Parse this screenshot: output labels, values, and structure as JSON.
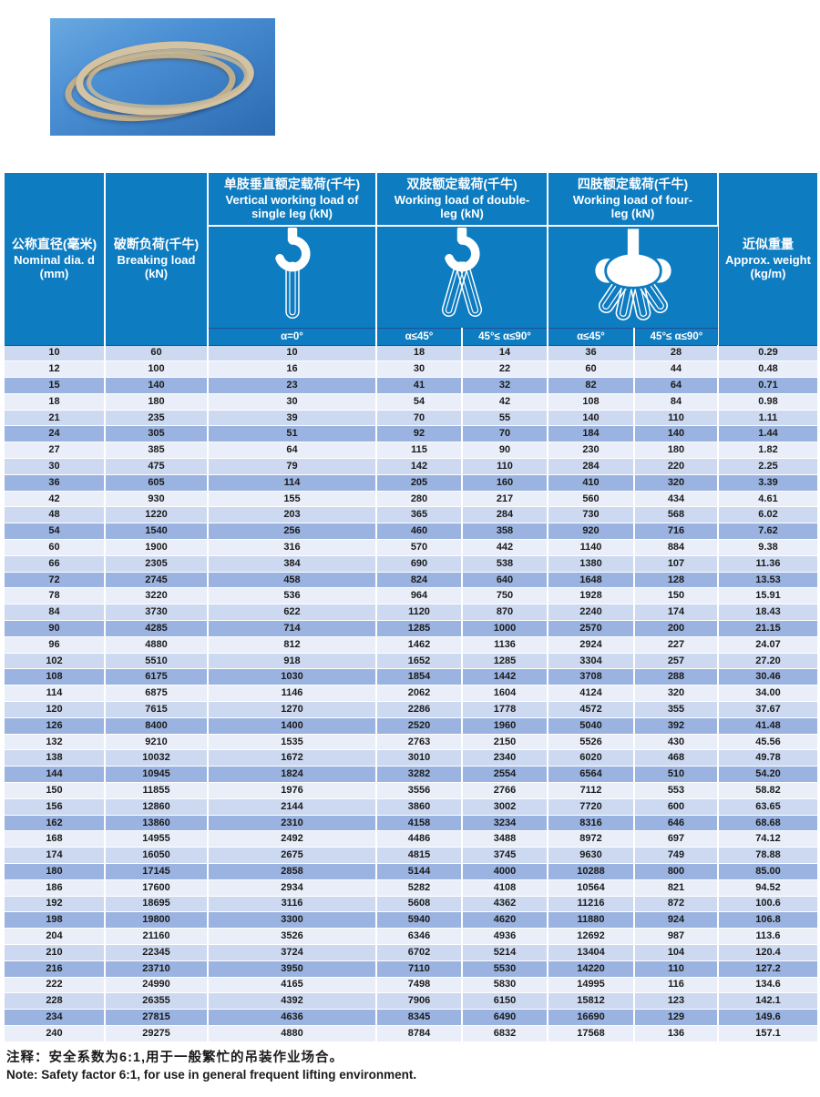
{
  "product_image": {
    "name": "wire-rope-coil-photo"
  },
  "table": {
    "headers": {
      "nominal": {
        "zh": "公称直径(毫米)",
        "en": "Nominal dia. d\n(mm)"
      },
      "breaking": {
        "zh": "破断负荷(千牛)",
        "en": "Breaking load\n(kN)"
      },
      "single": {
        "zh": "单肢垂直额定载荷(千牛)",
        "en": "Vertical working load of\nsingle leg (kN)"
      },
      "double": {
        "zh": "双肢额定载荷(千牛)",
        "en": "Working load of double-\nleg (kN)"
      },
      "four": {
        "zh": "四肢额定载荷(千牛)",
        "en": "Working load of four-\nleg (kN)"
      },
      "weight": {
        "zh": "近似重量",
        "en": "Approx. weight\n(kg/m)"
      }
    },
    "angle_labels": [
      "α=0°",
      "α≤45°",
      "45°≤ α≤90°",
      "α≤45°",
      "45°≤ α≤90°"
    ],
    "icons": [
      "single-leg-hook-icon",
      "double-leg-hook-icon",
      "four-leg-sling-icon"
    ],
    "rows": [
      [
        "10",
        "60",
        "10",
        "18",
        "14",
        "36",
        "28",
        "0.29"
      ],
      [
        "12",
        "100",
        "16",
        "30",
        "22",
        "60",
        "44",
        "0.48"
      ],
      [
        "15",
        "140",
        "23",
        "41",
        "32",
        "82",
        "64",
        "0.71"
      ],
      [
        "18",
        "180",
        "30",
        "54",
        "42",
        "108",
        "84",
        "0.98"
      ],
      [
        "21",
        "235",
        "39",
        "70",
        "55",
        "140",
        "110",
        "1.11"
      ],
      [
        "24",
        "305",
        "51",
        "92",
        "70",
        "184",
        "140",
        "1.44"
      ],
      [
        "27",
        "385",
        "64",
        "115",
        "90",
        "230",
        "180",
        "1.82"
      ],
      [
        "30",
        "475",
        "79",
        "142",
        "110",
        "284",
        "220",
        "2.25"
      ],
      [
        "36",
        "605",
        "114",
        "205",
        "160",
        "410",
        "320",
        "3.39"
      ],
      [
        "42",
        "930",
        "155",
        "280",
        "217",
        "560",
        "434",
        "4.61"
      ],
      [
        "48",
        "1220",
        "203",
        "365",
        "284",
        "730",
        "568",
        "6.02"
      ],
      [
        "54",
        "1540",
        "256",
        "460",
        "358",
        "920",
        "716",
        "7.62"
      ],
      [
        "60",
        "1900",
        "316",
        "570",
        "442",
        "1140",
        "884",
        "9.38"
      ],
      [
        "66",
        "2305",
        "384",
        "690",
        "538",
        "1380",
        "107",
        "11.36"
      ],
      [
        "72",
        "2745",
        "458",
        "824",
        "640",
        "1648",
        "128",
        "13.53"
      ],
      [
        "78",
        "3220",
        "536",
        "964",
        "750",
        "1928",
        "150",
        "15.91"
      ],
      [
        "84",
        "3730",
        "622",
        "1120",
        "870",
        "2240",
        "174",
        "18.43"
      ],
      [
        "90",
        "4285",
        "714",
        "1285",
        "1000",
        "2570",
        "200",
        "21.15"
      ],
      [
        "96",
        "4880",
        "812",
        "1462",
        "1136",
        "2924",
        "227",
        "24.07"
      ],
      [
        "102",
        "5510",
        "918",
        "1652",
        "1285",
        "3304",
        "257",
        "27.20"
      ],
      [
        "108",
        "6175",
        "1030",
        "1854",
        "1442",
        "3708",
        "288",
        "30.46"
      ],
      [
        "114",
        "6875",
        "1146",
        "2062",
        "1604",
        "4124",
        "320",
        "34.00"
      ],
      [
        "120",
        "7615",
        "1270",
        "2286",
        "1778",
        "4572",
        "355",
        "37.67"
      ],
      [
        "126",
        "8400",
        "1400",
        "2520",
        "1960",
        "5040",
        "392",
        "41.48"
      ],
      [
        "132",
        "9210",
        "1535",
        "2763",
        "2150",
        "5526",
        "430",
        "45.56"
      ],
      [
        "138",
        "10032",
        "1672",
        "3010",
        "2340",
        "6020",
        "468",
        "49.78"
      ],
      [
        "144",
        "10945",
        "1824",
        "3282",
        "2554",
        "6564",
        "510",
        "54.20"
      ],
      [
        "150",
        "11855",
        "1976",
        "3556",
        "2766",
        "7112",
        "553",
        "58.82"
      ],
      [
        "156",
        "12860",
        "2144",
        "3860",
        "3002",
        "7720",
        "600",
        "63.65"
      ],
      [
        "162",
        "13860",
        "2310",
        "4158",
        "3234",
        "8316",
        "646",
        "68.68"
      ],
      [
        "168",
        "14955",
        "2492",
        "4486",
        "3488",
        "8972",
        "697",
        "74.12"
      ],
      [
        "174",
        "16050",
        "2675",
        "4815",
        "3745",
        "9630",
        "749",
        "78.88"
      ],
      [
        "180",
        "17145",
        "2858",
        "5144",
        "4000",
        "10288",
        "800",
        "85.00"
      ],
      [
        "186",
        "17600",
        "2934",
        "5282",
        "4108",
        "10564",
        "821",
        "94.52"
      ],
      [
        "192",
        "18695",
        "3116",
        "5608",
        "4362",
        "11216",
        "872",
        "100.6"
      ],
      [
        "198",
        "19800",
        "3300",
        "5940",
        "4620",
        "11880",
        "924",
        "106.8"
      ],
      [
        "204",
        "21160",
        "3526",
        "6346",
        "4936",
        "12692",
        "987",
        "113.6"
      ],
      [
        "210",
        "22345",
        "3724",
        "6702",
        "5214",
        "13404",
        "104",
        "120.4"
      ],
      [
        "216",
        "23710",
        "3950",
        "7110",
        "5530",
        "14220",
        "110",
        "127.2"
      ],
      [
        "222",
        "24990",
        "4165",
        "7498",
        "5830",
        "14995",
        "116",
        "134.6"
      ],
      [
        "228",
        "26355",
        "4392",
        "7906",
        "6150",
        "15812",
        "123",
        "142.1"
      ],
      [
        "234",
        "27815",
        "4636",
        "8345",
        "6490",
        "16690",
        "129",
        "149.6"
      ],
      [
        "240",
        "29275",
        "4880",
        "8784",
        "6832",
        "17568",
        "136",
        "157.1"
      ]
    ]
  },
  "note": {
    "zh": "注释：安全系数为6:1,用于一般繁忙的吊装作业场合。",
    "en": "Note: Safety factor 6:1, for use in general frequent lifting environment."
  },
  "colors": {
    "header_blue": "#0e7cc1",
    "border_navy": "#1e4f96",
    "row_light": "#e9eef9",
    "row_medium": "#cdd9f0",
    "row_dark": "#9ab3e0"
  }
}
